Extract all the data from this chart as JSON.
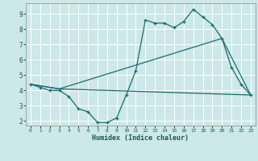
{
  "title": "",
  "xlabel": "Humidex (Indice chaleur)",
  "bg_color": "#cce8e8",
  "line_color": "#1a6b6b",
  "grid_color": "#ffffff",
  "xlim": [
    -0.5,
    23.5
  ],
  "ylim": [
    1.7,
    9.7
  ],
  "x_ticks": [
    0,
    1,
    2,
    3,
    4,
    5,
    6,
    7,
    8,
    9,
    10,
    11,
    12,
    13,
    14,
    15,
    16,
    17,
    18,
    19,
    20,
    21,
    22,
    23
  ],
  "y_ticks": [
    2,
    3,
    4,
    5,
    6,
    7,
    8,
    9
  ],
  "line1_x": [
    0,
    1,
    2,
    3,
    4,
    5,
    6,
    7,
    8,
    9,
    10,
    11,
    12,
    13,
    14,
    15,
    16,
    17,
    18,
    19,
    20,
    21,
    22,
    23
  ],
  "line1_y": [
    4.4,
    4.2,
    4.0,
    4.0,
    3.6,
    2.8,
    2.6,
    1.9,
    1.9,
    2.2,
    3.7,
    5.3,
    8.6,
    8.4,
    8.4,
    8.1,
    8.5,
    9.3,
    8.8,
    8.3,
    7.4,
    5.5,
    4.4,
    3.7
  ],
  "line2_x": [
    0,
    3,
    23
  ],
  "line2_y": [
    4.4,
    4.1,
    3.7
  ],
  "line3_x": [
    0,
    3,
    20,
    23
  ],
  "line3_y": [
    4.4,
    4.1,
    7.4,
    3.7
  ]
}
